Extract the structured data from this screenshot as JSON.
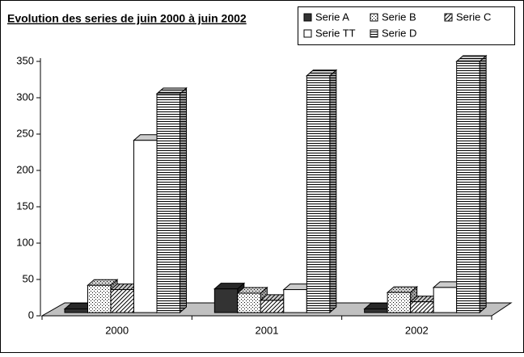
{
  "chart_data": {
    "type": "bar3d",
    "title": "Evolution des series de juin 2000 à juin 2002",
    "categories": [
      "2000",
      "2001",
      "2002"
    ],
    "series": [
      {
        "name": "Serie A",
        "color": "#333333",
        "pattern": "solid",
        "values": [
          5,
          33,
          5
        ]
      },
      {
        "name": "Serie B",
        "color": "#ffffff",
        "pattern": "dots",
        "values": [
          38,
          27,
          28
        ]
      },
      {
        "name": "Serie C",
        "color": "#ffffff",
        "pattern": "diagonal",
        "values": [
          32,
          17,
          15
        ]
      },
      {
        "name": "Serie TT",
        "color": "#ffffff",
        "pattern": "none",
        "values": [
          240,
          32,
          35
        ]
      },
      {
        "name": "Serie D",
        "color": "#ffffff",
        "pattern": "horizontal",
        "values": [
          305,
          330,
          350
        ]
      }
    ],
    "ylim": [
      0,
      350
    ],
    "yticks": [
      0,
      50,
      100,
      150,
      200,
      250,
      300,
      350
    ],
    "floor_color": "#c0c0c0"
  }
}
